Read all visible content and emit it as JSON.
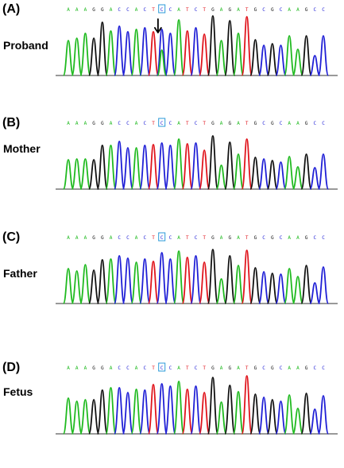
{
  "sequence": "AAAGGACCACTCCATCTGAGATGCGCAAGCC",
  "highlight_index": 11,
  "colors": {
    "A": "#1fba1f",
    "C": "#1f1fd6",
    "G": "#111111",
    "T": "#e0141c",
    "box": "#2a9ad8",
    "baseline": "#333333"
  },
  "panels": [
    {
      "letter": "(A)",
      "name": "Proband",
      "arrow": true,
      "secondary_peak": true
    },
    {
      "letter": "(B)",
      "name": "Mother",
      "arrow": false,
      "secondary_peak": false
    },
    {
      "letter": "(C)",
      "name": "Father",
      "arrow": false,
      "secondary_peak": false
    },
    {
      "letter": "(D)",
      "name": "Fetus",
      "arrow": false,
      "secondary_peak": false
    }
  ]
}
